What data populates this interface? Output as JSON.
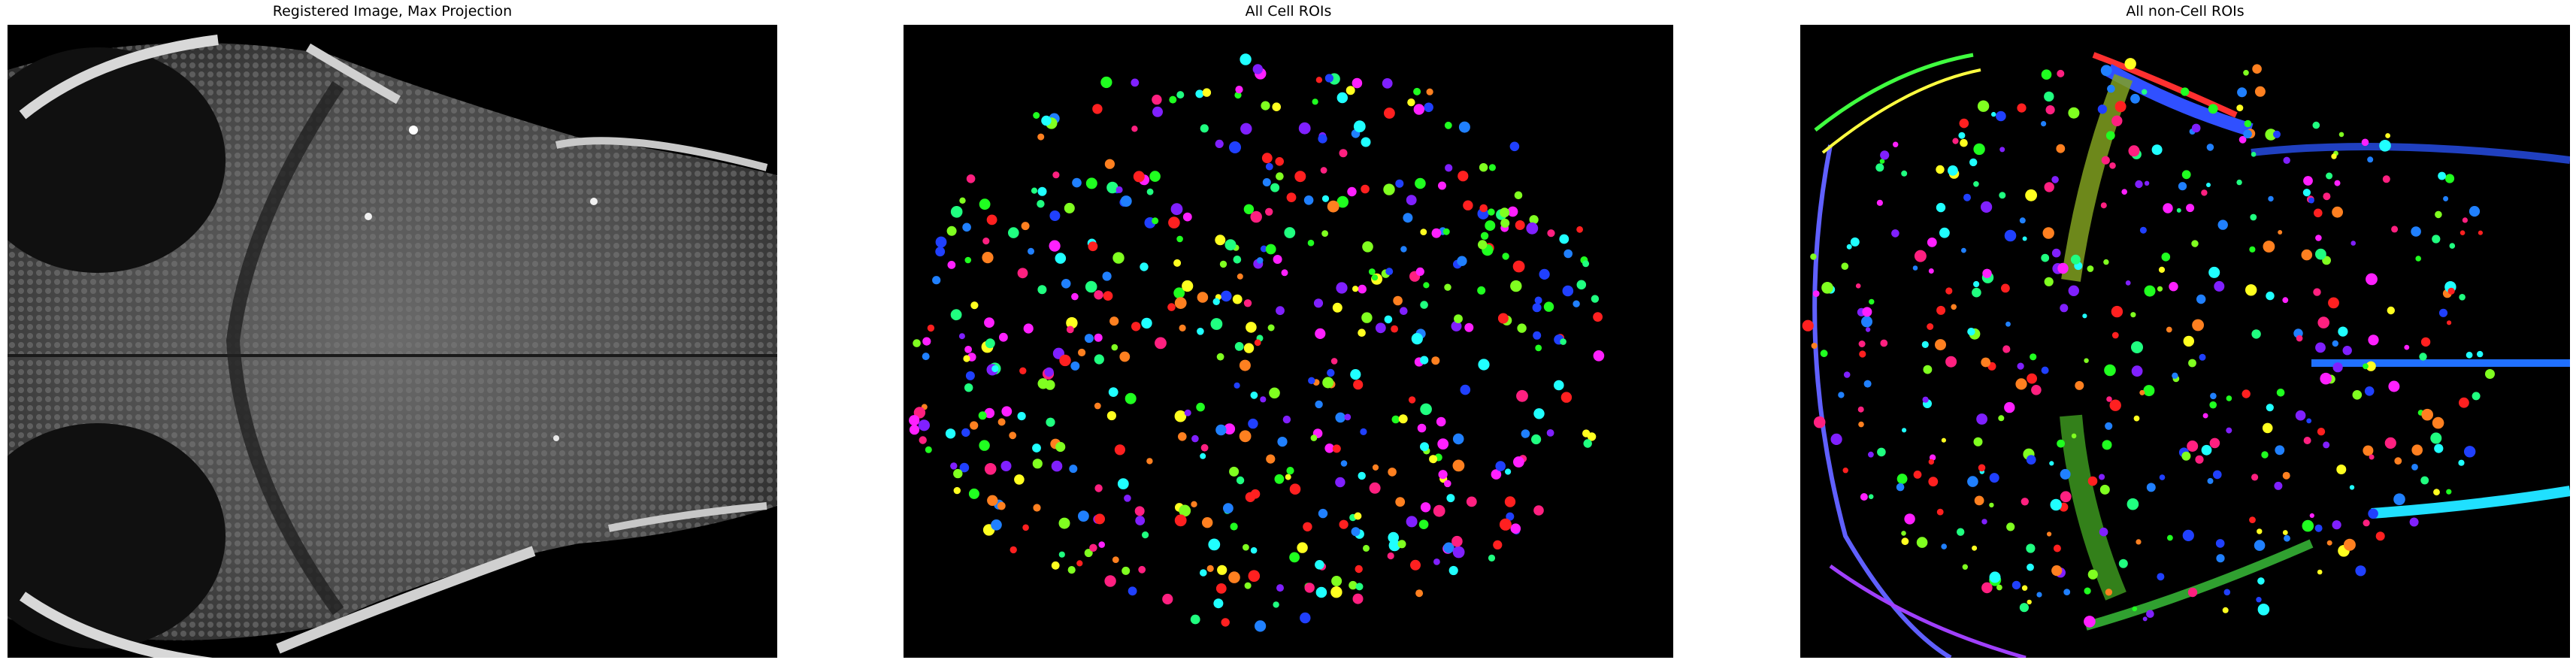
{
  "panels": [
    {
      "title": "Registered Image, Max Projection",
      "kind": "grayscale-brain"
    },
    {
      "title": "All Cell ROIs",
      "kind": "cell-rois"
    },
    {
      "title": "All non-Cell ROIs",
      "kind": "noncell-rois"
    }
  ],
  "colors": {
    "roi_palette": [
      "#ff2020",
      "#20ff20",
      "#2040ff",
      "#ffff20",
      "#ff20ff",
      "#20ffff",
      "#ff8020",
      "#8020ff",
      "#20ff80",
      "#ff2080",
      "#80ff20",
      "#2080ff"
    ]
  }
}
